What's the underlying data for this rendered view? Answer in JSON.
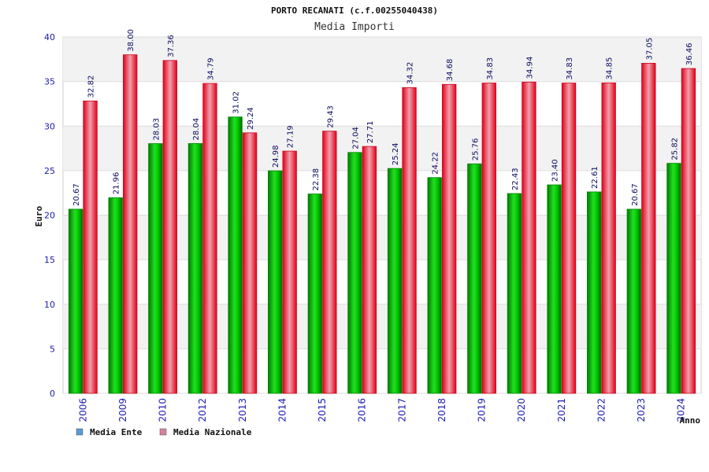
{
  "chart_data": {
    "type": "bar",
    "title": "PORTO RECANATI (c.f.00255040438)",
    "subtitle": "Media Importi",
    "xlabel": "Anno",
    "ylabel": "Euro",
    "ylim": [
      0,
      40
    ],
    "yticks": [
      0,
      5,
      10,
      15,
      20,
      25,
      30,
      35,
      40
    ],
    "grid": true,
    "legend_position": "bottom-left",
    "categories": [
      "2006",
      "2009",
      "2010",
      "2012",
      "2013",
      "2014",
      "2015",
      "2016",
      "2017",
      "2018",
      "2019",
      "2020",
      "2021",
      "2022",
      "2023",
      "2024"
    ],
    "series": [
      {
        "name": "Media Ente",
        "color": "#00c000",
        "legend_color": "#5b9bd5",
        "values": [
          20.67,
          21.96,
          28.03,
          28.04,
          31.02,
          24.98,
          22.38,
          27.04,
          25.24,
          24.22,
          25.76,
          22.43,
          23.4,
          22.61,
          20.67,
          25.82
        ],
        "labels": [
          "20.67",
          "21.96",
          "28.03",
          "28.04",
          "31.02",
          "24.98",
          "22.38",
          "27.04",
          "25.24",
          "24.22",
          "25.76",
          "22.43",
          "23.40",
          "22.61",
          "20.67",
          "25.82"
        ]
      },
      {
        "name": "Media Nazionale",
        "color": "#e8102a",
        "legend_color": "#d77fa0",
        "values": [
          32.82,
          38.0,
          37.36,
          34.79,
          29.24,
          27.19,
          29.43,
          27.71,
          34.32,
          34.68,
          34.83,
          34.94,
          34.83,
          34.85,
          37.05,
          36.46
        ],
        "labels": [
          "32.82",
          "38.00",
          "37.36",
          "34.79",
          "29.24",
          "27.19",
          "29.43",
          "27.71",
          "34.32",
          "34.68",
          "34.83",
          "34.94",
          "34.83",
          "34.85",
          "37.05",
          "36.46"
        ]
      }
    ]
  }
}
